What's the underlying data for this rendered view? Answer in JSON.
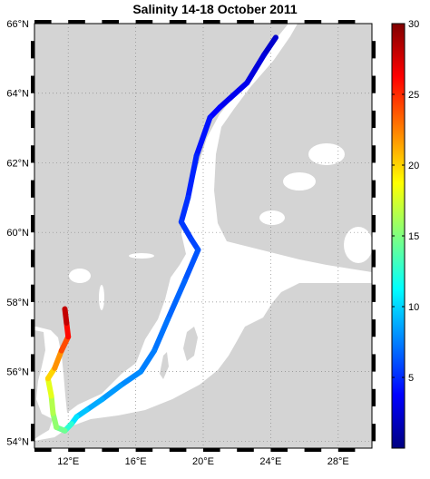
{
  "title": "Salinity 14-18 October 2011",
  "map": {
    "lat_range": [
      53.8,
      66.0
    ],
    "lon_range": [
      10.0,
      30.0
    ],
    "lat_ticks": [
      {
        "value": 54,
        "label": "54°N"
      },
      {
        "value": 56,
        "label": "56°N"
      },
      {
        "value": 58,
        "label": "58°N"
      },
      {
        "value": 60,
        "label": "60°N"
      },
      {
        "value": 62,
        "label": "62°N"
      },
      {
        "value": 64,
        "label": "64°N"
      },
      {
        "value": 66,
        "label": "66°N"
      }
    ],
    "lon_ticks": [
      {
        "value": 12,
        "label": "12°E"
      },
      {
        "value": 16,
        "label": "16°E"
      },
      {
        "value": 20,
        "label": "20°E"
      },
      {
        "value": 24,
        "label": "24°E"
      },
      {
        "value": 28,
        "label": "28°E"
      }
    ],
    "land_color": "#d4d4d4",
    "water_color": "#ffffff",
    "grid": "dotted"
  },
  "colorbar": {
    "min": 0,
    "max": 30,
    "ticks": [
      {
        "value": 5,
        "label": "5"
      },
      {
        "value": 10,
        "label": "10"
      },
      {
        "value": 15,
        "label": "15"
      },
      {
        "value": 20,
        "label": "20"
      },
      {
        "value": 25,
        "label": "25"
      },
      {
        "value": 30,
        "label": "30"
      }
    ],
    "colormap": "jet"
  },
  "track": [
    {
      "lon": 24.3,
      "lat": 65.6,
      "salinity": 2.0
    },
    {
      "lon": 23.6,
      "lat": 65.1,
      "salinity": 2.5
    },
    {
      "lon": 22.6,
      "lat": 64.3,
      "salinity": 3.0
    },
    {
      "lon": 21.0,
      "lat": 63.6,
      "salinity": 3.5
    },
    {
      "lon": 20.4,
      "lat": 63.3,
      "salinity": 4.0
    },
    {
      "lon": 19.6,
      "lat": 62.2,
      "salinity": 4.5
    },
    {
      "lon": 19.1,
      "lat": 61.0,
      "salinity": 5.0
    },
    {
      "lon": 18.7,
      "lat": 60.3,
      "salinity": 5.3
    },
    {
      "lon": 19.3,
      "lat": 59.8,
      "salinity": 5.6
    },
    {
      "lon": 19.7,
      "lat": 59.5,
      "salinity": 6.0
    },
    {
      "lon": 18.9,
      "lat": 58.6,
      "salinity": 6.5
    },
    {
      "lon": 17.9,
      "lat": 57.5,
      "salinity": 7.0
    },
    {
      "lon": 17.1,
      "lat": 56.6,
      "salinity": 7.3
    },
    {
      "lon": 16.3,
      "lat": 56.0,
      "salinity": 7.6
    },
    {
      "lon": 15.1,
      "lat": 55.6,
      "salinity": 8.0
    },
    {
      "lon": 14.0,
      "lat": 55.2,
      "salinity": 8.5
    },
    {
      "lon": 13.1,
      "lat": 54.9,
      "salinity": 9.0
    },
    {
      "lon": 12.5,
      "lat": 54.7,
      "salinity": 10.0
    },
    {
      "lon": 12.2,
      "lat": 54.5,
      "salinity": 11.0
    },
    {
      "lon": 11.8,
      "lat": 54.3,
      "salinity": 14.0
    },
    {
      "lon": 11.3,
      "lat": 54.4,
      "salinity": 15.0
    },
    {
      "lon": 11.1,
      "lat": 54.8,
      "salinity": 16.0
    },
    {
      "lon": 11.0,
      "lat": 55.3,
      "salinity": 17.0
    },
    {
      "lon": 10.8,
      "lat": 55.8,
      "salinity": 19.0
    },
    {
      "lon": 11.2,
      "lat": 56.1,
      "salinity": 21.0
    },
    {
      "lon": 11.6,
      "lat": 56.6,
      "salinity": 23.0
    },
    {
      "lon": 12.0,
      "lat": 57.0,
      "salinity": 25.0
    },
    {
      "lon": 11.9,
      "lat": 57.4,
      "salinity": 27.0
    },
    {
      "lon": 11.8,
      "lat": 57.8,
      "salinity": 29.0
    }
  ]
}
